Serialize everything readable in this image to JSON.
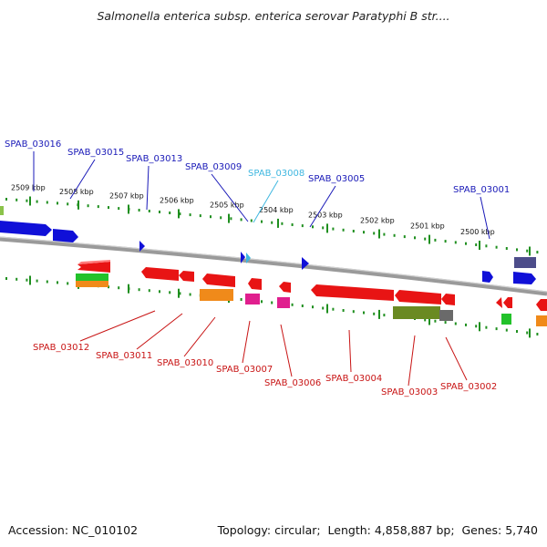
{
  "title": "Salmonella enterica subsp. enterica serovar Paratyphi B str....",
  "colors": {
    "backbone": "#8a8a8a",
    "ticks": "#1f8f1f",
    "top_labels": "#1a1ab8",
    "highlight_label": "#3fb7e0",
    "bottom_labels": "#c81414",
    "scale_text": "#111111"
  },
  "scale_labels": [
    "2509 kbp",
    "2508 kbp",
    "2507 kbp",
    "2506 kbp",
    "2505 kbp",
    "2504 kbp",
    "2503 kbp",
    "2502 kbp",
    "2501 kbp",
    "2500 kbp"
  ],
  "top_genes": [
    {
      "label": "SPAB_03016",
      "color": "#1a1ab8"
    },
    {
      "label": "SPAB_03015",
      "color": "#1a1ab8"
    },
    {
      "label": "SPAB_03013",
      "color": "#1a1ab8"
    },
    {
      "label": "SPAB_03009",
      "color": "#1a1ab8"
    },
    {
      "label": "SPAB_03008",
      "color": "#3fb7e0"
    },
    {
      "label": "SPAB_03005",
      "color": "#1a1ab8"
    },
    {
      "label": "SPAB_03001",
      "color": "#1a1ab8"
    }
  ],
  "bottom_genes": [
    {
      "label": "SPAB_03012"
    },
    {
      "label": "SPAB_03011"
    },
    {
      "label": "SPAB_03010"
    },
    {
      "label": "SPAB_03007"
    },
    {
      "label": "SPAB_03006"
    },
    {
      "label": "SPAB_03004"
    },
    {
      "label": "SPAB_03003"
    },
    {
      "label": "SPAB_03002"
    }
  ],
  "footer": {
    "accession_label": "Accession:",
    "accession": "NC_010102",
    "topology_label": "Topology:",
    "topology": "circular",
    "length_label": "Length:",
    "length": "4,858,887 bp",
    "genes_label": "Genes:",
    "genes": "5,740"
  }
}
